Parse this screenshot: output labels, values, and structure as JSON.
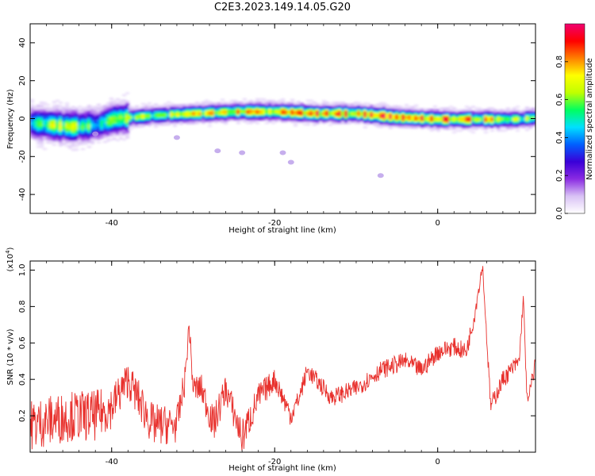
{
  "title": "C2E3.2023.149.14.05.G20",
  "chart_data": [
    {
      "type": "heatmap",
      "xlabel": "Height of straight line (km)",
      "ylabel": "Frequency (Hz)",
      "xlim": [
        -50,
        12
      ],
      "ylim": [
        -50,
        50
      ],
      "xticks": [
        -40,
        -20,
        0
      ],
      "yticks": [
        -40,
        -20,
        0,
        20,
        40
      ],
      "colorbar": {
        "label": "Normalized spectral amplitude",
        "range": [
          0,
          1
        ],
        "ticks": [
          0.0,
          0.2,
          0.4,
          0.6,
          0.8
        ],
        "colors": [
          "#ffffff",
          "#d9c2f5",
          "#8a2be2",
          "#3a00d8",
          "#0060ff",
          "#00e0ff",
          "#00ff60",
          "#c0ff00",
          "#ffff00",
          "#ff8000",
          "#ff0000",
          "#f00070"
        ]
      },
      "ridge": {
        "x": [
          -50,
          -45,
          -42,
          -40,
          -35,
          -30,
          -25,
          -20,
          -15,
          -10,
          -5,
          0,
          5,
          10,
          12
        ],
        "freq": [
          -2,
          -4,
          -3,
          0,
          2,
          3,
          4,
          4,
          3,
          3,
          1,
          0,
          0,
          0,
          1
        ],
        "intensity": [
          0.55,
          0.6,
          0.5,
          0.55,
          0.6,
          0.65,
          0.7,
          0.75,
          0.8,
          0.8,
          0.85,
          0.8,
          0.75,
          0.6,
          0.55
        ]
      },
      "blobs": [
        {
          "x": -27,
          "freq": -17
        },
        {
          "x": -24,
          "freq": -18
        },
        {
          "x": -19,
          "freq": -18
        },
        {
          "x": -18,
          "freq": -23
        },
        {
          "x": -7,
          "freq": -30
        },
        {
          "x": -32,
          "freq": -10
        },
        {
          "x": -42,
          "freq": -8
        }
      ]
    },
    {
      "type": "line",
      "xlabel": "Height of straight line (km)",
      "ylabel": "SNR (10 * v/v)",
      "yunit": "(x10",
      "yunit_exp": "4",
      "yunit_close": ")",
      "xlim": [
        -50,
        12
      ],
      "ylim": [
        0,
        1.05
      ],
      "xticks": [
        -40,
        -20,
        0
      ],
      "yticks": [
        0.2,
        0.4,
        0.6,
        0.8,
        1.0
      ],
      "color": "#e8302c",
      "series": {
        "anchors": {
          "x": [
            -50,
            -45,
            -42,
            -40,
            -38,
            -35,
            -32,
            -31,
            -30.5,
            -30,
            -29,
            -27.5,
            -26,
            -24,
            -22,
            -20,
            -18,
            -17,
            -16,
            -13,
            -10,
            -7,
            -4,
            -2,
            0,
            2,
            3.5,
            4.5,
            5.5,
            6.5,
            8,
            10,
            10.5,
            11,
            12
          ],
          "y": [
            0.15,
            0.2,
            0.2,
            0.25,
            0.4,
            0.15,
            0.15,
            0.4,
            0.7,
            0.35,
            0.35,
            0.15,
            0.35,
            0.08,
            0.3,
            0.4,
            0.2,
            0.3,
            0.45,
            0.3,
            0.35,
            0.45,
            0.5,
            0.45,
            0.55,
            0.58,
            0.55,
            0.75,
            1.03,
            0.25,
            0.4,
            0.5,
            0.85,
            0.25,
            0.5
          ]
        },
        "noise": [
          0.14,
          0.14,
          0.14,
          0.12,
          0.1,
          0.12,
          0.1,
          0.08,
          0.05,
          0.08,
          0.08,
          0.1,
          0.08,
          0.1,
          0.08,
          0.06,
          0.06,
          0.05,
          0.05,
          0.05,
          0.05,
          0.05,
          0.05,
          0.05,
          0.05,
          0.05,
          0.05,
          0.05,
          0.03,
          0.05,
          0.05,
          0.05,
          0.03,
          0.05,
          0.05
        ]
      }
    }
  ]
}
